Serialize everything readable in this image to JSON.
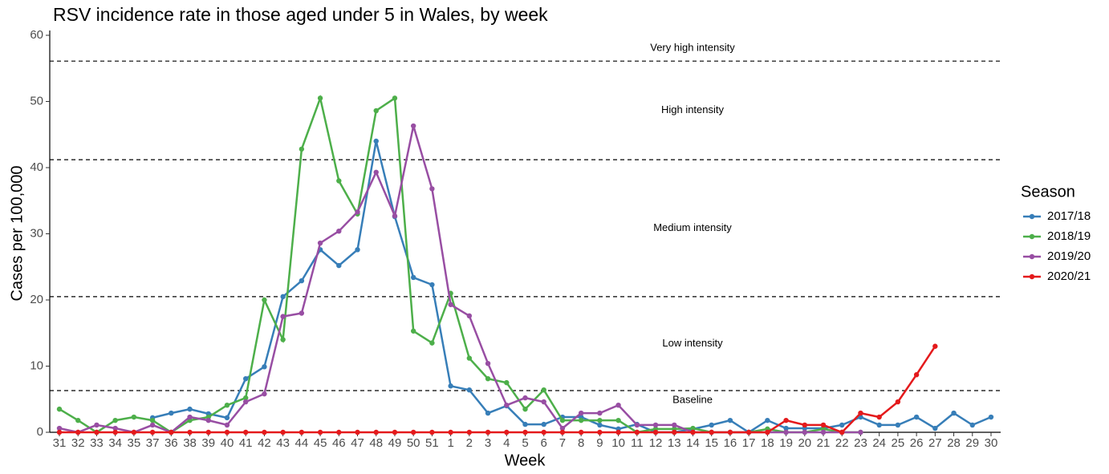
{
  "chart_data": {
    "type": "line",
    "title": "RSV incidence rate in those aged under 5 in Wales, by week",
    "x_label": "Week",
    "y_label": "Cases per 100,000",
    "categories": [
      "31",
      "32",
      "33",
      "34",
      "35",
      "37",
      "36",
      "38",
      "39",
      "40",
      "41",
      "42",
      "43",
      "44",
      "45",
      "46",
      "47",
      "48",
      "49",
      "50",
      "51",
      "1",
      "2",
      "3",
      "4",
      "5",
      "6",
      "7",
      "8",
      "9",
      "10",
      "11",
      "12",
      "13",
      "14",
      "15",
      "16",
      "17",
      "18",
      "19",
      "20",
      "21",
      "22",
      "23",
      "24",
      "25",
      "26",
      "27",
      "28",
      "29",
      "30"
    ],
    "legend_title": "Season",
    "series": [
      {
        "name": "2017/18",
        "color": "#377eb8",
        "values": [
          null,
          null,
          null,
          null,
          null,
          2.2,
          2.9,
          3.5,
          2.8,
          2.2,
          8.1,
          9.9,
          20.5,
          22.9,
          27.6,
          25.2,
          27.6,
          44,
          32.6,
          23.4,
          22.3,
          7,
          6.4,
          2.9,
          4,
          1.2,
          1.2,
          2.3,
          2.3,
          1.1,
          0.5,
          1.2,
          0,
          0,
          0.5,
          1.1,
          1.8,
          0,
          1.8,
          0.6,
          0.6,
          0.6,
          1.1,
          2.3,
          1.1,
          1.1,
          2.3,
          0.6,
          2.9,
          1.1,
          2.3
        ]
      },
      {
        "name": "2018/19",
        "color": "#4daf4a",
        "values": [
          3.5,
          1.8,
          0,
          1.8,
          2.3,
          1.8,
          0,
          1.8,
          2.3,
          4.1,
          5.2,
          20,
          14,
          42.8,
          50.5,
          38,
          33,
          48.6,
          50.5,
          15.3,
          13.5,
          21,
          11.2,
          8.1,
          7.5,
          3.5,
          6.4,
          1.8,
          1.8,
          1.8,
          1.8,
          0,
          0.5,
          0.5,
          0.6,
          0,
          0,
          0,
          0.5,
          0,
          0,
          0.5,
          0,
          0,
          null,
          null,
          null,
          null,
          null,
          null,
          null
        ]
      },
      {
        "name": "2019/20",
        "color": "#984ea3",
        "values": [
          0.6,
          0,
          1.1,
          0.6,
          0,
          1.1,
          0,
          2.3,
          1.8,
          1.1,
          4.6,
          5.8,
          17.5,
          18,
          28.6,
          30.4,
          33.3,
          39.3,
          32.7,
          46.3,
          36.8,
          19.3,
          17.6,
          10.4,
          4.1,
          5.2,
          4.6,
          0.6,
          2.9,
          2.9,
          4.1,
          1.1,
          1.1,
          1.1,
          0,
          0,
          0,
          0,
          0,
          0,
          0,
          0,
          0,
          0,
          null,
          null,
          null,
          null,
          null,
          null,
          null
        ]
      },
      {
        "name": "2020/21",
        "color": "#e41a1c",
        "values": [
          0,
          0,
          0,
          0,
          0,
          0,
          0,
          0,
          0,
          0,
          0,
          0,
          0,
          0,
          0,
          0,
          0,
          0,
          0,
          0,
          0,
          0,
          0,
          0,
          0,
          0,
          0,
          0,
          0,
          0,
          0,
          0,
          0,
          0,
          0,
          0,
          0,
          0,
          0,
          1.8,
          1.1,
          1.1,
          0,
          2.9,
          2.3,
          4.6,
          8.7,
          13,
          null,
          null,
          null
        ]
      }
    ],
    "thresholds": [
      {
        "value": 6.3,
        "label": "Baseline"
      },
      {
        "value": 20.5,
        "label": "Low intensity"
      },
      {
        "value": 41.2,
        "label": "Medium intensity"
      },
      {
        "value": 56.1,
        "label": "High intensity"
      }
    ],
    "top_label": "Very high intensity",
    "ylim": [
      0,
      60
    ],
    "yticks": [
      0,
      10,
      20,
      30,
      40,
      50,
      60
    ],
    "grid": false
  }
}
